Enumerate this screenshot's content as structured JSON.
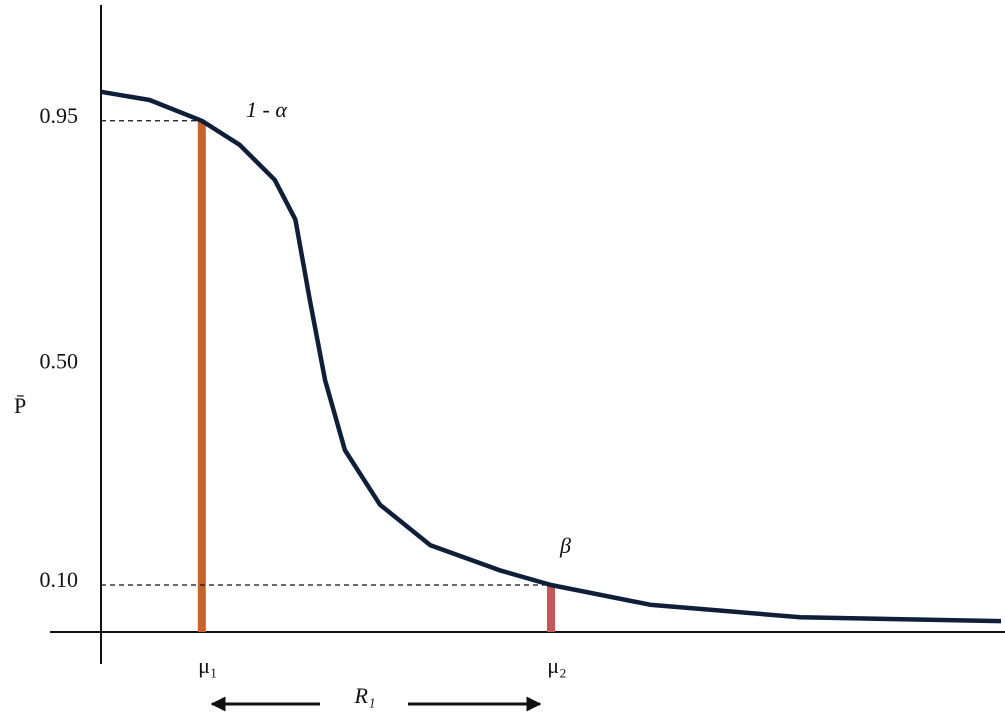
{
  "chart_data": {
    "type": "line",
    "y_label": "P̄",
    "ylim": [
      0.014,
      1.162
    ],
    "yticks": [
      0.95,
      {
        "value": 0.5,
        "label": "0.50"
      },
      {
        "value": 0.1,
        "label": "0.10"
      }
    ],
    "xlim": [
      0,
      100
    ],
    "color": "#0f1f3a",
    "x": [
      0,
      5.4,
      11.2,
      15.4,
      19.3,
      21.6,
      23.2,
      24.9,
      27.1,
      31,
      36.6,
      44.3,
      50,
      61,
      77.7,
      100
    ],
    "values": [
      1.003,
      0.988,
      0.95,
      0.906,
      0.842,
      0.769,
      0.622,
      0.475,
      0.347,
      0.247,
      0.173,
      0.127,
      0.1,
      0.064,
      0.041,
      0.034
    ],
    "markers": [
      {
        "label": "μ₁",
        "x": 11.2,
        "value": 0.95,
        "color": "#c8622c"
      },
      {
        "label": "μ₂",
        "x": 50,
        "value": 0.1,
        "color": "#c85656"
      }
    ],
    "annotations": [
      "1 - α",
      "β"
    ],
    "range_label": "R₁"
  }
}
